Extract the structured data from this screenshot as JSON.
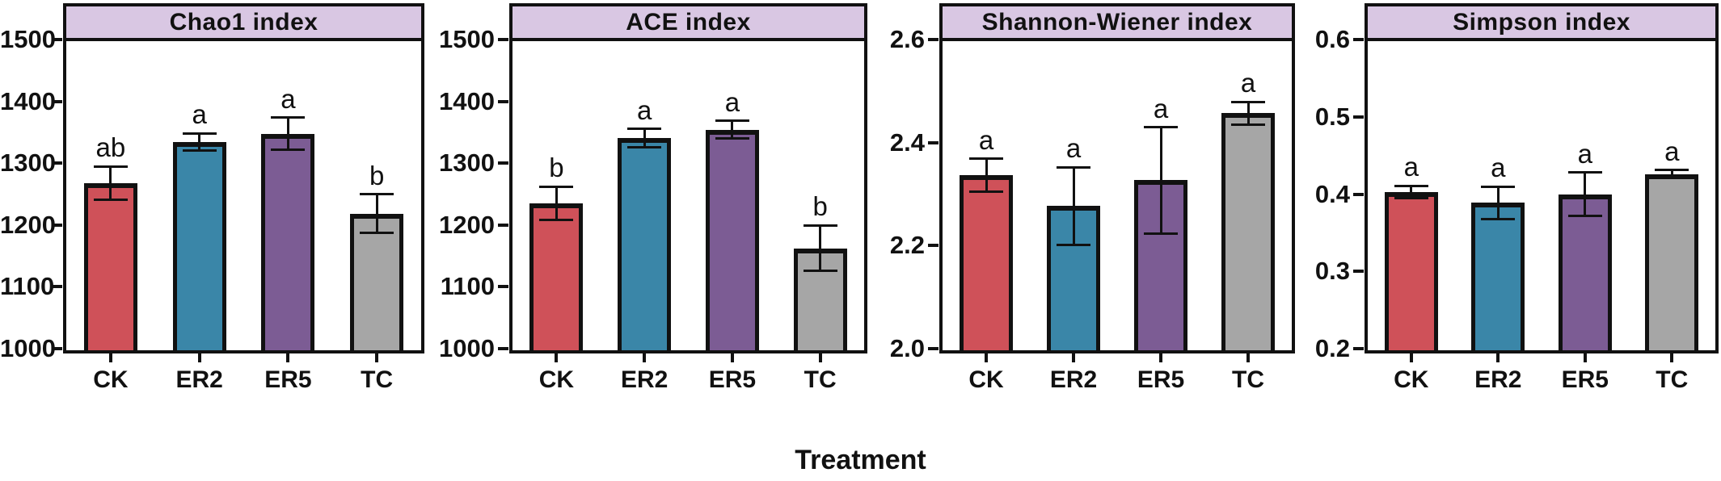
{
  "figure": {
    "xlabel": "Treatment",
    "background": "#ffffff",
    "strip_color": "#d9c7e3",
    "frame_color": "#111111"
  },
  "palette": {
    "CK": "#cf5159",
    "ER2": "#3a86a8",
    "ER5": "#7c5c94",
    "TC": "#a6a6a6"
  },
  "chart_data": [
    {
      "type": "bar",
      "title": "Chao1 index",
      "categories": [
        "CK",
        "ER2",
        "ER5",
        "TC"
      ],
      "values": [
        1270,
        1337,
        1350,
        1221
      ],
      "errors": [
        27,
        14,
        26,
        31
      ],
      "letters": [
        "ab",
        "a",
        "a",
        "b"
      ],
      "ylim": [
        1000,
        1500
      ],
      "yticks": [
        "1000",
        "1100",
        "1200",
        "1300",
        "1400",
        "1500"
      ],
      "xlabel": "Treatment",
      "ylabel": "",
      "grid": false,
      "legend": "none"
    },
    {
      "type": "bar",
      "title": "ACE index",
      "categories": [
        "CK",
        "ER2",
        "ER5",
        "TC"
      ],
      "values": [
        1238,
        1343,
        1357,
        1165
      ],
      "errors": [
        27,
        15,
        14,
        37
      ],
      "letters": [
        "b",
        "a",
        "a",
        "b"
      ],
      "ylim": [
        1000,
        1500
      ],
      "yticks": [
        "1000",
        "1100",
        "1200",
        "1300",
        "1400",
        "1500"
      ],
      "xlabel": "Treatment",
      "ylabel": "",
      "grid": false,
      "legend": "none"
    },
    {
      "type": "bar",
      "title": "Shannon-Wiener index",
      "categories": [
        "CK",
        "ER2",
        "ER5",
        "TC"
      ],
      "values": [
        2.34,
        2.28,
        2.33,
        2.46
      ],
      "errors": [
        0.032,
        0.075,
        0.103,
        0.022
      ],
      "letters": [
        "a",
        "a",
        "a",
        "a"
      ],
      "ylim": [
        2.0,
        2.6
      ],
      "yticks": [
        "2.0",
        "2.2",
        "2.4",
        "2.6"
      ],
      "xlabel": "Treatment",
      "ylabel": "",
      "grid": false,
      "legend": "none"
    },
    {
      "type": "bar",
      "title": "Simpson index",
      "categories": [
        "CK",
        "ER2",
        "ER5",
        "TC"
      ],
      "values": [
        0.405,
        0.391,
        0.402,
        0.428
      ],
      "errors": [
        0.008,
        0.021,
        0.028,
        0.005
      ],
      "letters": [
        "a",
        "a",
        "a",
        "a"
      ],
      "ylim": [
        0.2,
        0.6
      ],
      "yticks": [
        "0.2",
        "0.3",
        "0.4",
        "0.5",
        "0.6"
      ],
      "xlabel": "Treatment",
      "ylabel": "",
      "grid": false,
      "legend": "none"
    }
  ]
}
